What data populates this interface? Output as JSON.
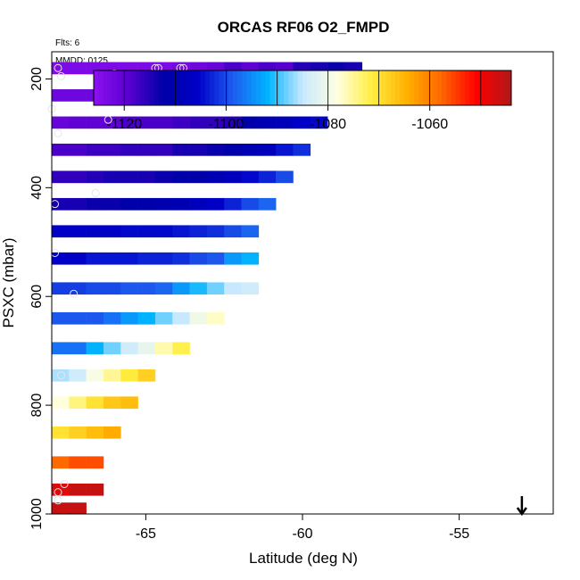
{
  "chart_data": {
    "type": "heatmap",
    "title": "ORCAS RF06 O2_FMPD",
    "flights_label": "Flts: 6",
    "date_label": "MMDD: 0125",
    "xlabel": "Latitude (deg N)",
    "ylabel": "PSXC (mbar)",
    "xlim": [
      -68.0,
      -52.0
    ],
    "ylim": [
      1000,
      150
    ],
    "y_reversed": true,
    "x_ticks": [
      -65,
      -60,
      -55
    ],
    "x_tick_labels": [
      "-65",
      "-60",
      "-55"
    ],
    "y_ticks": [
      200,
      400,
      600,
      800,
      1000
    ],
    "y_tick_labels": [
      "200",
      "400",
      "600",
      "800",
      "1000"
    ],
    "colorbar": {
      "range": [
        -1126,
        -1044
      ],
      "ticks": [
        -1120,
        -1100,
        -1080,
        -1060
      ],
      "tick_labels": [
        "-1120",
        "-1100",
        "-1080",
        "-1060"
      ],
      "colors": [
        "#8b10f0",
        "#5a00d0",
        "#0000a8",
        "#0000c8",
        "#1e5cf0",
        "#00b4ff",
        "#c8e8ff",
        "#ffffe0",
        "#ffee40",
        "#ffb000",
        "#ff6600",
        "#ff0000",
        "#b01818"
      ]
    },
    "arrow_marker": {
      "x": -53.0,
      "direction": "down"
    },
    "grid": false,
    "cell_height_mbar": 22,
    "rows": [
      {
        "p": 180,
        "x0": -68.0,
        "dx": 0.55,
        "values": [
          -1124,
          -1124,
          -1124,
          -1124,
          -1124,
          -1124,
          -1124,
          -1123,
          -1122,
          -1121,
          -1118,
          -1120,
          -1118,
          -1119,
          -1115,
          -1114,
          -1113,
          -1114
        ]
      },
      {
        "p": 230,
        "x0": -68.0,
        "dx": 0.55,
        "values": [
          -1122,
          -1122,
          -1122,
          -1121,
          -1121,
          -1121,
          -1120,
          -1120,
          -1120,
          -1118,
          -1117,
          -1114,
          -1112,
          -1110,
          -1108,
          -1114,
          -1113
        ]
      },
      {
        "p": 280,
        "x0": -68.0,
        "dx": 0.55,
        "values": [
          -1121,
          -1120,
          -1120,
          -1120,
          -1118,
          -1118,
          -1118,
          -1117,
          -1116,
          -1116,
          -1115,
          -1112,
          -1110,
          -1109,
          -1106,
          -1105
        ]
      },
      {
        "p": 330,
        "x0": -68.0,
        "dx": 0.55,
        "values": [
          -1118,
          -1118,
          -1117,
          -1117,
          -1116,
          -1116,
          -1116,
          -1114,
          -1114,
          -1113,
          -1112,
          -1110,
          -1108,
          -1104,
          -1102
        ]
      },
      {
        "p": 380,
        "x0": -68.0,
        "dx": 0.55,
        "values": [
          -1116,
          -1116,
          -1115,
          -1114,
          -1114,
          -1114,
          -1113,
          -1112,
          -1112,
          -1110,
          -1108,
          -1105,
          -1103,
          -1100
        ]
      },
      {
        "p": 430,
        "x0": -68.0,
        "dx": 0.55,
        "values": [
          -1114,
          -1114,
          -1113,
          -1113,
          -1112,
          -1112,
          -1111,
          -1110,
          -1108,
          -1106,
          -1103,
          -1100,
          -1098
        ]
      },
      {
        "p": 480,
        "x0": -68.0,
        "dx": 0.55,
        "values": [
          -1106,
          -1106,
          -1106,
          -1106,
          -1105,
          -1105,
          -1105,
          -1104,
          -1103,
          -1102,
          -1100,
          -1098
        ]
      },
      {
        "p": 530,
        "x0": -68.0,
        "dx": 0.55,
        "values": [
          -1106,
          -1106,
          -1104,
          -1104,
          -1104,
          -1103,
          -1103,
          -1102,
          -1100,
          -1099,
          -1094,
          -1092
        ]
      },
      {
        "p": 585,
        "x0": -68.0,
        "dx": 0.55,
        "values": [
          -1101,
          -1101,
          -1100,
          -1100,
          -1099,
          -1099,
          -1098,
          -1094,
          -1091,
          -1088,
          -1085,
          -1084
        ]
      },
      {
        "p": 640,
        "x0": -68.0,
        "dx": 0.55,
        "values": [
          -1099,
          -1099,
          -1099,
          -1097,
          -1094,
          -1092,
          -1088,
          -1085,
          -1080,
          -1077
        ]
      },
      {
        "p": 695,
        "x0": -68.0,
        "dx": 0.55,
        "values": [
          -1097,
          -1097,
          -1092,
          -1088,
          -1084,
          -1081,
          -1076,
          -1072
        ]
      },
      {
        "p": 745,
        "x0": -68.0,
        "dx": 0.55,
        "values": [
          -1086,
          -1084,
          -1079,
          -1075,
          -1071,
          -1068
        ]
      },
      {
        "p": 795,
        "x0": -68.0,
        "dx": 0.55,
        "values": [
          -1078,
          -1074,
          -1070,
          -1067,
          -1066
        ]
      },
      {
        "p": 850,
        "x0": -68.0,
        "dx": 0.55,
        "values": [
          -1070,
          -1068,
          -1066,
          -1064
        ]
      },
      {
        "p": 905,
        "x0": -68.0,
        "dx": 0.55,
        "values": [
          -1058,
          -1056,
          -1056
        ]
      },
      {
        "p": 955,
        "x0": -68.0,
        "dx": 0.55,
        "values": [
          -1048,
          -1046,
          -1046
        ]
      },
      {
        "p": 990,
        "x0": -68.0,
        "dx": 0.55,
        "values": [
          -1046,
          -1046
        ]
      }
    ],
    "points": [
      {
        "x": -67.8,
        "p": 180
      },
      {
        "x": -67.7,
        "p": 195
      },
      {
        "x": -66.0,
        "p": 190
      },
      {
        "x": -64.7,
        "p": 180
      },
      {
        "x": -64.6,
        "p": 180
      },
      {
        "x": -63.9,
        "p": 180
      },
      {
        "x": -63.8,
        "p": 180
      },
      {
        "x": -68.0,
        "p": 255
      },
      {
        "x": -66.2,
        "p": 275
      },
      {
        "x": -67.8,
        "p": 300
      },
      {
        "x": -66.6,
        "p": 410
      },
      {
        "x": -67.9,
        "p": 430
      },
      {
        "x": -67.9,
        "p": 520
      },
      {
        "x": -67.3,
        "p": 595
      },
      {
        "x": -67.7,
        "p": 745
      },
      {
        "x": -67.6,
        "p": 945
      },
      {
        "x": -67.8,
        "p": 960
      },
      {
        "x": -67.8,
        "p": 975
      }
    ]
  }
}
